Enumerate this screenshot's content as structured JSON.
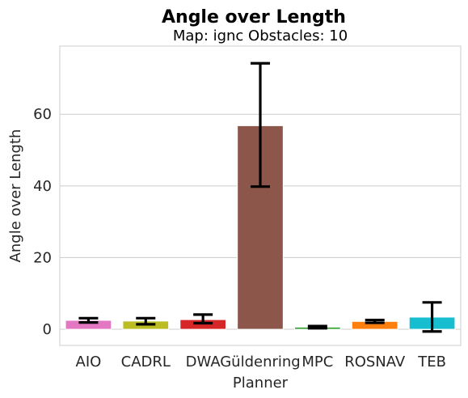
{
  "chart_data": {
    "type": "bar",
    "title": "Angle over Length",
    "subtitle": "Map: ignc Obstacles: 10",
    "xlabel": "Planner",
    "ylabel": "Angle over Length",
    "categories": [
      "AIO",
      "CADRL",
      "DWA",
      "Güldenring",
      "MPC",
      "ROSNAV",
      "TEB"
    ],
    "values": [
      2.5,
      2.3,
      2.7,
      56.8,
      0.6,
      2.2,
      3.4
    ],
    "error_low": [
      1.9,
      1.4,
      1.7,
      39.8,
      0.3,
      1.8,
      -0.6
    ],
    "error_high": [
      3.1,
      3.1,
      4.1,
      74.2,
      0.9,
      2.6,
      7.5
    ],
    "colors": [
      "#e377c2",
      "#bcbd22",
      "#d62728",
      "#8c564b",
      "#2ca02c",
      "#ff7f0e",
      "#17becf"
    ],
    "ylim": [
      -4.5,
      79
    ],
    "yticks": [
      0,
      20,
      40,
      60
    ],
    "grid": "horizontal"
  }
}
